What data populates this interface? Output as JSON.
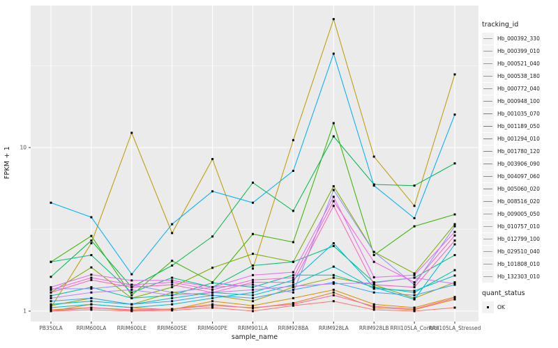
{
  "figure": {
    "style": {
      "page_bg": "#FFFFFF",
      "panel_bg": "#EBEBEB",
      "grid": "#FFFFFF",
      "key_bg": "#F2F2F2",
      "marker": "#000000",
      "axis_text": "#4D4D4D",
      "title_text": "#1A1A1A"
    },
    "x_axis": {
      "title": "sample_name"
    },
    "y_axis": {
      "title": "FPKM + 1",
      "tick_labels": [
        "1",
        "10"
      ]
    },
    "legends": {
      "tracking": {
        "title": "tracking_id"
      },
      "quant": {
        "title": "quant_status",
        "items": [
          {
            "label": "OK",
            "marker": "black-square"
          }
        ]
      }
    }
  },
  "chart_data": {
    "type": "line",
    "title": "",
    "xlabel": "sample_name",
    "ylabel": "FPKM + 1",
    "y_scale": "log10",
    "ylim": [
      0.88,
      74
    ],
    "y_ticks": [
      1,
      10
    ],
    "y_minor_gridlines": [
      3.1623,
      31.6228
    ],
    "grid": true,
    "legend_position": "right",
    "point_legend": {
      "title": "quant_status",
      "label": "OK",
      "marker": "black-square"
    },
    "categories": [
      "PB350LA",
      "RRIM600LA",
      "RRIM600LE",
      "RRIM600SE",
      "RRIM600PE",
      "RRIM901LA",
      "RRIM928BA",
      "RRIM928LA",
      "RRIM928LB",
      "RRII105LA_Control",
      "RRII105LA_Stressed"
    ],
    "series": [
      {
        "name": "Hb_000392_330",
        "color": "#F8766D",
        "values": [
          1.0,
          1.02,
          1.0,
          1.01,
          1.05,
          1.0,
          1.08,
          1.15,
          1.02,
          1.0,
          1.05
        ]
      },
      {
        "name": "Hb_000399_010",
        "color": "#EA8331",
        "values": [
          1.02,
          1.05,
          1.01,
          1.03,
          1.1,
          1.04,
          1.12,
          1.3,
          1.05,
          1.02,
          1.18
        ]
      },
      {
        "name": "Hb_000521_040",
        "color": "#D89000",
        "values": [
          1.0,
          1.1,
          1.05,
          1.02,
          1.15,
          1.08,
          1.2,
          1.35,
          1.1,
          1.05,
          1.22
        ]
      },
      {
        "name": "Hb_000538_180",
        "color": "#C09B00",
        "values": [
          1.05,
          2.6,
          12.3,
          3.0,
          8.5,
          1.82,
          11.1,
          61.0,
          8.8,
          4.4,
          28.0
        ]
      },
      {
        "name": "Hb_000772_040",
        "color": "#A3A500",
        "values": [
          1.08,
          1.2,
          1.1,
          1.3,
          1.25,
          1.15,
          1.4,
          1.6,
          1.45,
          1.2,
          1.5
        ]
      },
      {
        "name": "Hb_000948_100",
        "color": "#7CAE00",
        "values": [
          1.3,
          1.85,
          1.2,
          1.4,
          1.84,
          2.24,
          2.0,
          5.8,
          2.3,
          1.7,
          3.4
        ]
      },
      {
        "name": "Hb_001035_070",
        "color": "#39B600",
        "values": [
          2.0,
          2.88,
          1.25,
          2.03,
          1.5,
          2.96,
          2.64,
          14.1,
          2.2,
          3.3,
          3.9
        ]
      },
      {
        "name": "Hb_001189_050",
        "color": "#00BB4E",
        "values": [
          1.62,
          2.7,
          1.4,
          1.9,
          2.86,
          6.1,
          4.1,
          11.7,
          5.95,
          5.85,
          8.0
        ]
      },
      {
        "name": "Hb_001294_010",
        "color": "#00BF7D",
        "values": [
          2.0,
          2.2,
          1.3,
          1.6,
          1.4,
          1.9,
          2.0,
          2.5,
          1.5,
          1.6,
          2.2
        ]
      },
      {
        "name": "Hb_001780_120",
        "color": "#00C1A3",
        "values": [
          1.24,
          1.4,
          1.2,
          1.25,
          1.49,
          1.4,
          1.66,
          1.66,
          1.4,
          1.3,
          1.78
        ]
      },
      {
        "name": "Hb_003906_090",
        "color": "#00BFC4",
        "values": [
          1.1,
          1.15,
          1.1,
          1.2,
          1.3,
          1.25,
          1.45,
          1.87,
          1.37,
          1.33,
          1.65
        ]
      },
      {
        "name": "Hb_004097_060",
        "color": "#00BAE0",
        "values": [
          1.05,
          1.1,
          1.05,
          1.1,
          1.2,
          1.3,
          1.55,
          2.6,
          1.4,
          1.18,
          2.56
        ]
      },
      {
        "name": "Hb_005060_020",
        "color": "#00B0F6",
        "values": [
          4.6,
          3.75,
          1.68,
          3.4,
          5.4,
          4.6,
          7.2,
          37.5,
          5.85,
          3.7,
          15.9
        ]
      },
      {
        "name": "Hb_008516_020",
        "color": "#35A2FF",
        "values": [
          1.15,
          1.2,
          1.1,
          1.15,
          1.25,
          1.2,
          1.35,
          1.5,
          1.3,
          1.25,
          1.45
        ]
      },
      {
        "name": "Hb_009005_050",
        "color": "#9590FF",
        "values": [
          1.37,
          1.37,
          1.45,
          1.3,
          1.4,
          1.45,
          1.3,
          5.5,
          2.3,
          1.45,
          3.3
        ]
      },
      {
        "name": "Hb_010757_010",
        "color": "#C77CFF",
        "values": [
          1.2,
          1.3,
          1.35,
          1.25,
          1.3,
          1.35,
          1.42,
          1.47,
          1.49,
          1.6,
          1.47
        ]
      },
      {
        "name": "Hb_012799_100",
        "color": "#E76BF3",
        "values": [
          1.4,
          1.67,
          1.54,
          1.54,
          1.4,
          1.66,
          1.73,
          5.0,
          1.61,
          1.66,
          3.05
        ]
      },
      {
        "name": "Hb_029510_040",
        "color": "#FA62DB",
        "values": [
          1.35,
          1.6,
          1.45,
          1.5,
          1.35,
          1.55,
          1.6,
          4.7,
          2.0,
          1.5,
          2.9
        ]
      },
      {
        "name": "Hb_101808_010",
        "color": "#FF62BC",
        "values": [
          1.3,
          1.55,
          1.4,
          1.45,
          1.3,
          1.5,
          1.5,
          4.4,
          1.45,
          1.4,
          2.7
        ]
      },
      {
        "name": "Hb_132303_010",
        "color": "#FF6A98",
        "values": [
          1.0,
          1.05,
          1.02,
          1.03,
          1.08,
          1.05,
          1.1,
          1.25,
          1.07,
          1.03,
          1.2
        ]
      }
    ]
  }
}
